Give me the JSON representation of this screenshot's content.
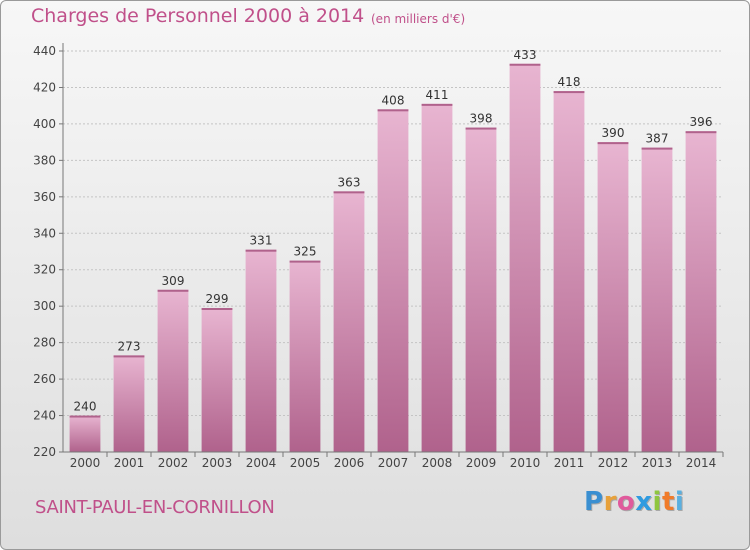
{
  "title": "Charges de Personnel 2000 à 2014",
  "unit_note": "(en milliers d'€)",
  "commune": "SAINT-PAUL-EN-CORNILLON",
  "brand": {
    "letters": [
      "P",
      "r",
      "o",
      "x",
      "i",
      "t",
      "i"
    ],
    "colors": [
      "#3a8fd1",
      "#e8a13a",
      "#e05a9c",
      "#2f9be0",
      "#8fc63f",
      "#f07b2a",
      "#5ab0e0"
    ]
  },
  "colors": {
    "bar": "#d884b3",
    "bar_light": "#e8b5d1",
    "bar_dark": "#b0628c",
    "accent": "#c0508a"
  },
  "chart_data": {
    "type": "bar",
    "categories": [
      "2000",
      "2001",
      "2002",
      "2003",
      "2004",
      "2005",
      "2006",
      "2007",
      "2008",
      "2009",
      "2010",
      "2011",
      "2012",
      "2013",
      "2014"
    ],
    "values": [
      240,
      273,
      309,
      299,
      331,
      325,
      363,
      408,
      411,
      398,
      433,
      418,
      390,
      387,
      396
    ],
    "ylim": [
      220,
      440
    ],
    "yticks": [
      220,
      240,
      260,
      280,
      300,
      320,
      340,
      360,
      380,
      400,
      420,
      440
    ],
    "grid": true
  }
}
